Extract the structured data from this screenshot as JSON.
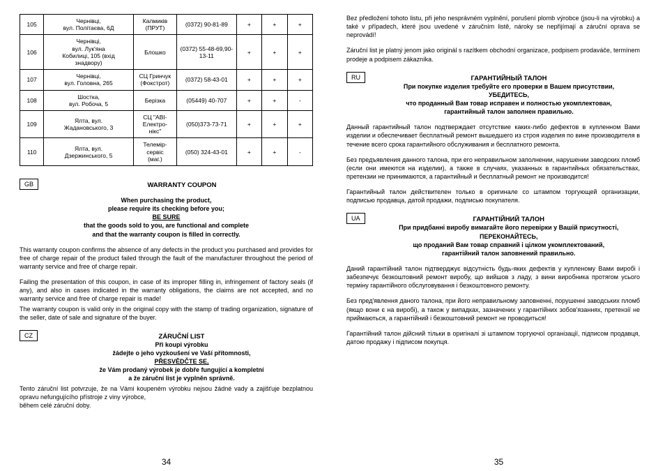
{
  "table": {
    "rows": [
      {
        "n": "105",
        "addr": "Чернівці,\nвул. Політаєва, 6Д",
        "name": "Калмиків\n(ПРУТ)",
        "phone": "(0372) 90-81-89",
        "c1": "+",
        "c2": "+",
        "c3": "+"
      },
      {
        "n": "106",
        "addr": "Чернівці,\nвул. Лук'яна\nКобилиці, 105 (вхід\nзнадвору)",
        "name": "Блошко",
        "phone": "(0372) 55-48-69,90-13-11",
        "c1": "+",
        "c2": "+",
        "c3": "+"
      },
      {
        "n": "107",
        "addr": "Чернівці,\nвул. Головна, 265",
        "name": "СЦ Гринчук\n(Фокстрот)",
        "phone": "(0372) 58-43-01",
        "c1": "+",
        "c2": "+",
        "c3": "+"
      },
      {
        "n": "108",
        "addr": "Шостка,\nвул. Робоча, 5",
        "name": "Берізка",
        "phone": "(05449) 40-707",
        "c1": "+",
        "c2": "+",
        "c3": "-"
      },
      {
        "n": "109",
        "addr": "Ялта, вул.\nЖадановського, 3",
        "name": "СЦ \"АВІ-\nЕлектро-\nнікс\"",
        "phone": "(050)373-73-71",
        "c1": "+",
        "c2": "+",
        "c3": "+"
      },
      {
        "n": "110",
        "addr": "Ялта, вул.\nДзержинського, 5",
        "name": "Телемір-\nсервіс\n(маг.)",
        "phone": "(050) 324-43-01",
        "c1": "+",
        "c2": "+",
        "c3": "-"
      }
    ]
  },
  "gb": {
    "lang": "GB",
    "title": "WARRANTY COUPON",
    "head1": "When purchasing the product,",
    "head2": "please require its checking before you;",
    "head3": "BE SURE",
    "head4": "that the goods sold to you, are functional and complete",
    "head5": "and that the warranty coupon is filled in correctly.",
    "p1": "This warranty coupon confirms the absence of any defects in the product you purchased and provides for free of charge repair of the product failed through the fault of the manufacturer throughout the period of warranty service and free of charge repair.",
    "p2": "Failing the presentation of this coupon, in case of its improper filling in, infringement of factory seals (if any), and also in cases indicated in the warranty obligations, the claims are not accepted, and no warranty service and free of charge repair is made!",
    "p3": "The warranty coupon is valid only in the original copy with the stamp of trading organization, signature of the seller, date of sale and signature of the buyer."
  },
  "cz": {
    "lang": "CZ",
    "title": "ZÁRUČNÍ LIST",
    "head1": "Při koupi výrobku",
    "head2": "žádejte o jeho vyzkoušení ve Vaší přítomnosti,",
    "head3": "PŘESVĚDČTE SE,",
    "head4": "že Vám prodaný výrobek je dobře fungující a kompletní",
    "head5": "a že záruční list je vyplněn správně.",
    "p1": "Tento záruční list potvrzuje, že na Vámi koupeném výrobku nejsou žádné vady a zajišťuje bezplatnou opravu nefungujícího přístroje z viny výrobce,",
    "p2": "během celé záruční doby."
  },
  "cz_right": {
    "p1": "Bez předložení tohoto listu, při jeho nesprávném vyplnění, porušení plomb výrobce (jsou-li na výrobku) a také v případech, které jsou uvedené v záručním listě, nároky se nepřijímají a záruční oprava se neprovádí!",
    "p2": "Záruční list je platný jenom jako originál s razítkem obchodní organizace, podpisem prodaváče, termínem prodeje a podpisem zákazníka."
  },
  "ru": {
    "lang": "RU",
    "title": "ГАРАНТИЙНЫЙ ТАЛОН",
    "head1": "При покупке изделия требуйте его проверки в Вашем присутствии,",
    "head2": "УБЕДИТЕСЬ,",
    "head3": "что проданный Вам товар исправен и полностью укомплектован,",
    "head4": "гарантийный талон заполнен правильно.",
    "p1": "Данный гарантийный талон подтверждает отсутствие каких-либо дефектов в купленном Вами изделии и обеспечивает бесплатный ремонт вышедшего из строя изделия по вине производителя в течение всего срока гарантийного обслуживания и бесплатного ремонта.",
    "p2": "Без предъявления данного талона, при его неправильном заполнении, нарушении заводских пломб (если они имеются на изделии), а также в случаях, указанных в гарантийных обязательствах, претензии не принимаются, а гарантийный и бесплатный ремонт не производится!",
    "p3": "Гарантийный талон действителен только в оригинале со штампом торгующей организации, подписью продавца, датой продажи, подписью покупателя."
  },
  "ua": {
    "lang": "UA",
    "title": "ГАРАНТІЙНИЙ ТАЛОН",
    "head1": "При придбанні виробу вимагайте його перевірки у Вашій присутності,",
    "head2": "ПЕРЕКОНАЙТЕСЬ,",
    "head3": "що проданий Вам товар справний і цілком укомплектований,",
    "head4": "гарантійний талон заповнений правильно.",
    "p1": "Даний гарантійний талон підтверджує відсутність будь-яких дефектів у купленому Вами виробі і забезпечує безкоштовний ремонт виробу, що вийшов з ладу, з вини виробника протягом усього терміну гарантійного обслуговування і безкоштовного ремонту.",
    "p2": "Без пред'явлення даного талона, при його неправильному заповненні, порушенні заводських пломб (якщо вони є на виробі), а також у випадках, зазначених у гарантійних зобов'язаннях, претензії не приймаються, а гарантійний і безкоштовний ремонт не проводиться!",
    "p3": "Гарантійний талон дійсний тільки в оригіналі зі штампом торгуючої організації, підписом продавця, датою продажу і підписом покупця."
  },
  "pageLeft": "34",
  "pageRight": "35"
}
